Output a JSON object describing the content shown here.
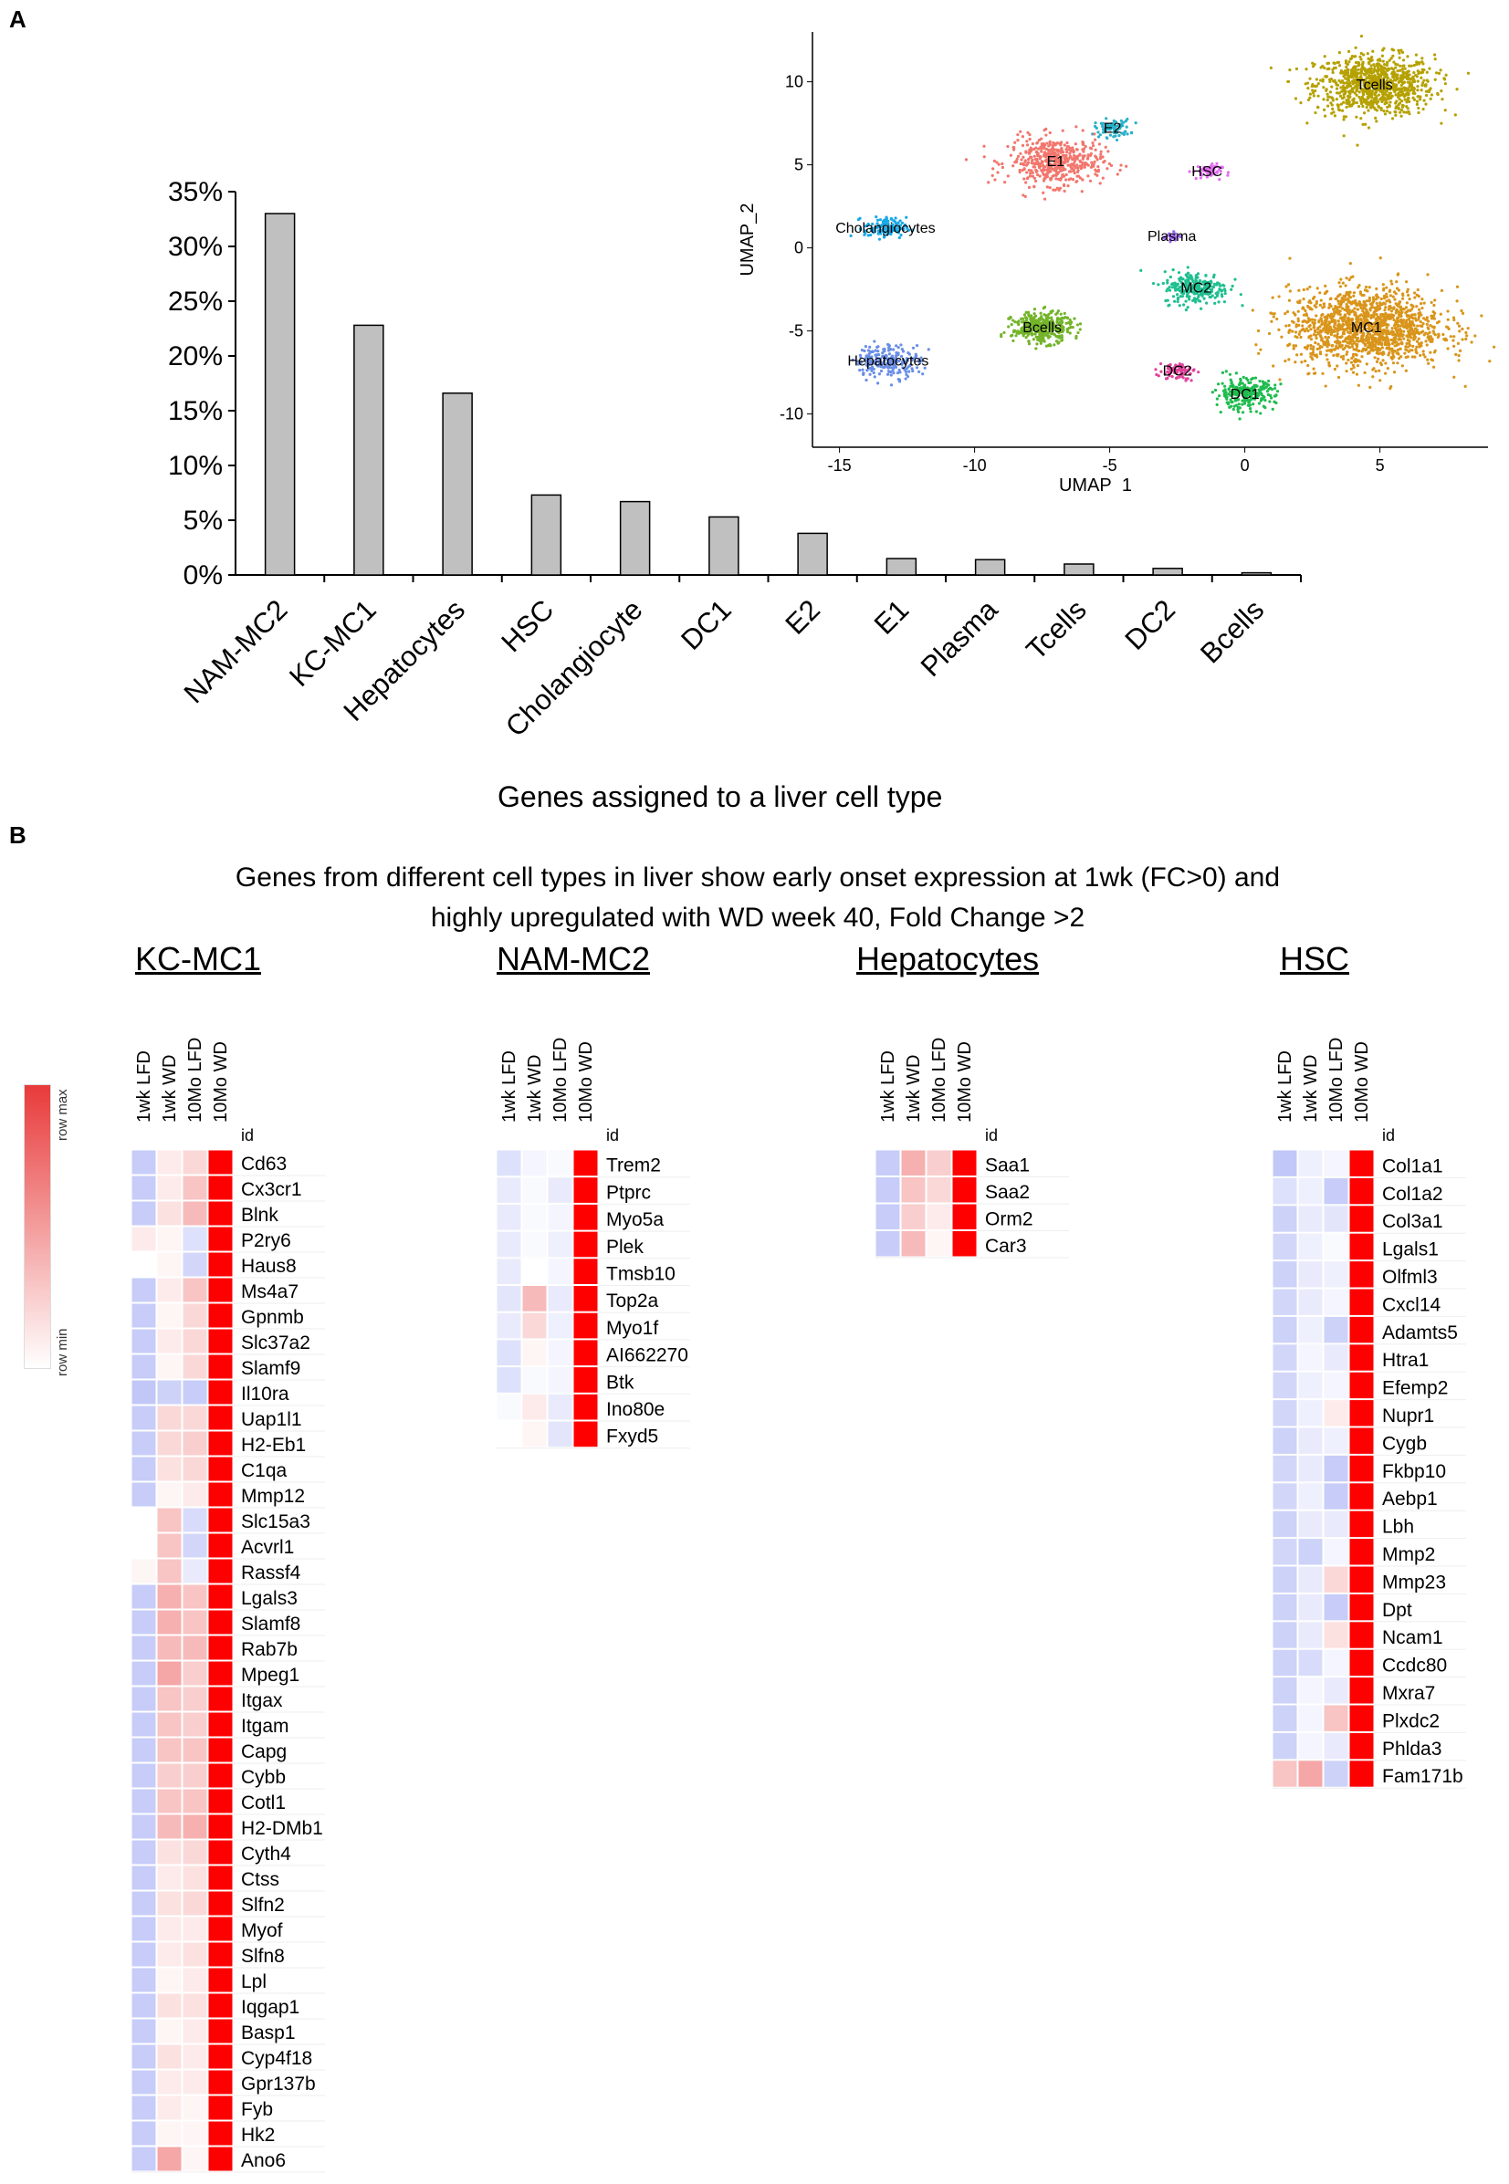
{
  "panel_labels": {
    "a": "A",
    "b": "B"
  },
  "chart_data": [
    {
      "type": "bar",
      "categories": [
        "NAM-MC2",
        "KC-MC1",
        "Hepatocytes",
        "HSC",
        "Cholangiocyte",
        "DC1",
        "E2",
        "E1",
        "Plasma",
        "Tcells",
        "DC2",
        "Bcells"
      ],
      "values": [
        33.0,
        22.8,
        16.6,
        7.3,
        6.7,
        5.3,
        3.8,
        1.5,
        1.4,
        1.0,
        0.6,
        0.2
      ],
      "ylim": [
        0,
        35
      ],
      "yticks": [
        "0%",
        "5%",
        "10%",
        "15%",
        "20%",
        "25%",
        "30%",
        "35%"
      ],
      "xlabel": "Genes assigned to a liver cell type",
      "ylabel": "",
      "bar_color": "#c0c0c0"
    },
    {
      "type": "scatter",
      "title": "UMAP inset",
      "xlabel": "UMAP_1",
      "ylabel": "UMAP_2",
      "xlim": [
        -16,
        9
      ],
      "ylim": [
        -12,
        13
      ],
      "xticks": [
        "-15",
        "-10",
        "-5",
        "0",
        "5"
      ],
      "xtick_values": [
        -15,
        -10,
        -5,
        0,
        5
      ],
      "yticks": [
        "10",
        "5",
        "0",
        "-5",
        "-10"
      ],
      "ytick_values": [
        10,
        5,
        0,
        -5,
        -10
      ],
      "clusters": [
        {
          "label": "Tcells",
          "cx": 4.8,
          "cy": 9.8,
          "spread": 2.0,
          "color": "#b5a100",
          "count": 900
        },
        {
          "label": "E2",
          "cx": -4.9,
          "cy": 7.2,
          "spread": 0.6,
          "color": "#27b1c9",
          "count": 80
        },
        {
          "label": "E1",
          "cx": -7.0,
          "cy": 5.2,
          "spread": 1.6,
          "color": "#f2766d",
          "count": 500
        },
        {
          "label": "HSC",
          "cx": -1.4,
          "cy": 4.6,
          "spread": 0.5,
          "color": "#e46cf0",
          "count": 50
        },
        {
          "label": "Cholangiocytes",
          "cx": -13.3,
          "cy": 1.2,
          "spread": 0.7,
          "color": "#18a9e6",
          "count": 120
        },
        {
          "label": "Plasma",
          "cx": -2.7,
          "cy": 0.7,
          "spread": 0.3,
          "color": "#9c67f2",
          "count": 25
        },
        {
          "label": "MC2",
          "cx": -1.8,
          "cy": -2.4,
          "spread": 1.1,
          "color": "#1fbf90",
          "count": 260
        },
        {
          "label": "MC1",
          "cx": 4.5,
          "cy": -4.8,
          "spread": 2.6,
          "color": "#d9951b",
          "count": 1400
        },
        {
          "label": "Bcells",
          "cx": -7.5,
          "cy": -4.8,
          "spread": 1.0,
          "color": "#74b42a",
          "count": 380
        },
        {
          "label": "Hepatocytes",
          "cx": -13.2,
          "cy": -6.8,
          "spread": 1.1,
          "color": "#6a8ee6",
          "count": 220
        },
        {
          "label": "DC2",
          "cx": -2.5,
          "cy": -7.4,
          "spread": 0.6,
          "color": "#e1429a",
          "count": 70
        },
        {
          "label": "DC1",
          "cx": 0.0,
          "cy": -8.8,
          "spread": 1.0,
          "color": "#1fbc4f",
          "count": 260
        }
      ]
    },
    {
      "type": "heatmap",
      "subtitle": "Genes from different cell types in liver show early onset expression at 1wk (FC>0) and highly upregulated with WD week 40, Fold Change >2",
      "columns": [
        "1wk LFD",
        "1wk WD",
        "10Mo LFD",
        "10Mo WD"
      ],
      "id_label": "id",
      "legend": {
        "max_label": "row max",
        "min_label": "row min",
        "max_color": "#e83a3a",
        "min_color": "#ffffff",
        "low_color": "#8f9bf0"
      },
      "groups": [
        {
          "title": "KC-MC1",
          "rows": [
            {
              "gene": "Cd63",
              "values": [
                -0.5,
                0.1,
                0.2,
                1.0
              ]
            },
            {
              "gene": "Cx3cr1",
              "values": [
                -0.5,
                0.1,
                0.3,
                1.0
              ]
            },
            {
              "gene": "Blnk",
              "values": [
                -0.5,
                0.15,
                0.35,
                1.0
              ]
            },
            {
              "gene": "P2ry6",
              "values": [
                0.1,
                0.05,
                -0.3,
                1.0
              ]
            },
            {
              "gene": "Haus8",
              "values": [
                0.0,
                0.05,
                -0.4,
                1.0
              ]
            },
            {
              "gene": "Ms4a7",
              "values": [
                -0.5,
                0.1,
                0.3,
                1.0
              ]
            },
            {
              "gene": "Gpnmb",
              "values": [
                -0.5,
                0.05,
                0.2,
                1.0
              ]
            },
            {
              "gene": "Slc37a2",
              "values": [
                -0.5,
                0.1,
                0.2,
                1.0
              ]
            },
            {
              "gene": "Slamf9",
              "values": [
                -0.5,
                0.05,
                0.2,
                1.0
              ]
            },
            {
              "gene": "Il10ra",
              "values": [
                -0.55,
                -0.45,
                -0.5,
                1.0
              ]
            },
            {
              "gene": "Uap1l1",
              "values": [
                -0.5,
                0.2,
                0.2,
                1.0
              ]
            },
            {
              "gene": "H2-Eb1",
              "values": [
                -0.5,
                0.2,
                0.25,
                1.0
              ]
            },
            {
              "gene": "C1qa",
              "values": [
                -0.5,
                0.15,
                0.2,
                1.0
              ]
            },
            {
              "gene": "Mmp12",
              "values": [
                -0.5,
                0.05,
                0.1,
                1.0
              ]
            },
            {
              "gene": "Slc15a3",
              "values": [
                0.0,
                0.3,
                -0.35,
                1.0
              ]
            },
            {
              "gene": "Acvrl1",
              "values": [
                0.0,
                0.3,
                -0.4,
                1.0
              ]
            },
            {
              "gene": "Rassf4",
              "values": [
                0.05,
                0.3,
                -0.2,
                1.0
              ]
            },
            {
              "gene": "Lgals3",
              "values": [
                -0.5,
                0.4,
                0.3,
                1.0
              ]
            },
            {
              "gene": "Slamf8",
              "values": [
                -0.5,
                0.4,
                0.3,
                1.0
              ]
            },
            {
              "gene": "Rab7b",
              "values": [
                -0.5,
                0.35,
                0.35,
                1.0
              ]
            },
            {
              "gene": "Mpeg1",
              "values": [
                -0.5,
                0.45,
                0.25,
                1.0
              ]
            },
            {
              "gene": "Itgax",
              "values": [
                -0.5,
                0.3,
                0.25,
                1.0
              ]
            },
            {
              "gene": "Itgam",
              "values": [
                -0.5,
                0.3,
                0.25,
                1.0
              ]
            },
            {
              "gene": "Capg",
              "values": [
                -0.5,
                0.3,
                0.3,
                1.0
              ]
            },
            {
              "gene": "Cybb",
              "values": [
                -0.5,
                0.25,
                0.25,
                1.0
              ]
            },
            {
              "gene": "Cotl1",
              "values": [
                -0.5,
                0.3,
                0.3,
                1.0
              ]
            },
            {
              "gene": "H2-DMb1",
              "values": [
                -0.5,
                0.35,
                0.4,
                1.0
              ]
            },
            {
              "gene": "Cyth4",
              "values": [
                -0.5,
                0.15,
                0.2,
                1.0
              ]
            },
            {
              "gene": "Ctss",
              "values": [
                -0.5,
                0.1,
                0.15,
                1.0
              ]
            },
            {
              "gene": "Slfn2",
              "values": [
                -0.5,
                0.15,
                0.2,
                1.0
              ]
            },
            {
              "gene": "Myof",
              "values": [
                -0.5,
                0.1,
                0.1,
                1.0
              ]
            },
            {
              "gene": "Slfn8",
              "values": [
                -0.5,
                0.1,
                0.15,
                1.0
              ]
            },
            {
              "gene": "Lpl",
              "values": [
                -0.5,
                0.05,
                0.1,
                1.0
              ]
            },
            {
              "gene": "Iqgap1",
              "values": [
                -0.5,
                0.15,
                0.15,
                1.0
              ]
            },
            {
              "gene": "Basp1",
              "values": [
                -0.5,
                0.05,
                0.1,
                1.0
              ]
            },
            {
              "gene": "Cyp4f18",
              "values": [
                -0.5,
                0.15,
                0.1,
                1.0
              ]
            },
            {
              "gene": "Gpr137b",
              "values": [
                -0.5,
                0.1,
                0.1,
                1.0
              ]
            },
            {
              "gene": "Fyb",
              "values": [
                -0.5,
                0.1,
                0.05,
                1.0
              ]
            },
            {
              "gene": "Hk2",
              "values": [
                -0.5,
                0.05,
                0.05,
                1.0
              ]
            },
            {
              "gene": "Ano6",
              "values": [
                -0.5,
                0.45,
                0.05,
                1.0
              ]
            }
          ]
        },
        {
          "title": "NAM-MC2",
          "rows": [
            {
              "gene": "Trem2",
              "values": [
                -0.3,
                -0.1,
                -0.05,
                1.0
              ]
            },
            {
              "gene": "Ptprc",
              "values": [
                -0.2,
                -0.05,
                -0.2,
                1.0
              ]
            },
            {
              "gene": "Myo5a",
              "values": [
                -0.2,
                -0.05,
                -0.1,
                1.0
              ]
            },
            {
              "gene": "Plek",
              "values": [
                -0.2,
                -0.05,
                -0.15,
                1.0
              ]
            },
            {
              "gene": "Tmsb10",
              "values": [
                -0.2,
                0.0,
                -0.1,
                1.0
              ]
            },
            {
              "gene": "Top2a",
              "values": [
                -0.25,
                0.35,
                -0.2,
                1.0
              ]
            },
            {
              "gene": "Myo1f",
              "values": [
                -0.2,
                0.2,
                -0.15,
                1.0
              ]
            },
            {
              "gene": "AI662270",
              "values": [
                -0.3,
                0.05,
                -0.1,
                1.0
              ]
            },
            {
              "gene": "Btk",
              "values": [
                -0.3,
                -0.05,
                -0.1,
                1.0
              ]
            },
            {
              "gene": "Ino80e",
              "values": [
                -0.05,
                0.1,
                -0.2,
                1.0
              ]
            },
            {
              "gene": "Fxyd5",
              "values": [
                0.0,
                0.05,
                -0.25,
                1.0
              ]
            }
          ]
        },
        {
          "title": "Hepatocytes",
          "rows": [
            {
              "gene": "Saa1",
              "values": [
                -0.5,
                0.4,
                0.25,
                1.0
              ]
            },
            {
              "gene": "Saa2",
              "values": [
                -0.5,
                0.3,
                0.2,
                1.0
              ]
            },
            {
              "gene": "Orm2",
              "values": [
                -0.5,
                0.25,
                0.1,
                1.0
              ]
            },
            {
              "gene": "Car3",
              "values": [
                -0.5,
                0.35,
                0.05,
                1.0
              ]
            }
          ]
        },
        {
          "title": "HSC",
          "rows": [
            {
              "gene": "Col1a1",
              "values": [
                -0.55,
                -0.15,
                -0.1,
                1.0
              ]
            },
            {
              "gene": "Col1a2",
              "values": [
                -0.3,
                -0.15,
                -0.5,
                1.0
              ]
            },
            {
              "gene": "Col3a1",
              "values": [
                -0.45,
                -0.2,
                -0.25,
                1.0
              ]
            },
            {
              "gene": "Lgals1",
              "values": [
                -0.4,
                -0.15,
                -0.05,
                1.0
              ]
            },
            {
              "gene": "Olfml3",
              "values": [
                -0.45,
                -0.2,
                -0.15,
                1.0
              ]
            },
            {
              "gene": "Cxcl14",
              "values": [
                -0.4,
                -0.2,
                -0.1,
                1.0
              ]
            },
            {
              "gene": "Adamts5",
              "values": [
                -0.45,
                -0.15,
                -0.45,
                1.0
              ]
            },
            {
              "gene": "Htra1",
              "values": [
                -0.4,
                -0.1,
                -0.2,
                1.0
              ]
            },
            {
              "gene": "Efemp2",
              "values": [
                -0.4,
                -0.15,
                -0.1,
                1.0
              ]
            },
            {
              "gene": "Nupr1",
              "values": [
                -0.4,
                -0.15,
                0.1,
                1.0
              ]
            },
            {
              "gene": "Cygb",
              "values": [
                -0.45,
                -0.2,
                -0.15,
                1.0
              ]
            },
            {
              "gene": "Fkbp10",
              "values": [
                -0.4,
                -0.2,
                -0.5,
                1.0
              ]
            },
            {
              "gene": "Aebp1",
              "values": [
                -0.4,
                -0.15,
                -0.5,
                1.0
              ]
            },
            {
              "gene": "Lbh",
              "values": [
                -0.45,
                -0.2,
                -0.2,
                1.0
              ]
            },
            {
              "gene": "Mmp2",
              "values": [
                -0.4,
                -0.45,
                -0.1,
                1.0
              ]
            },
            {
              "gene": "Mmp23",
              "values": [
                -0.45,
                -0.2,
                0.2,
                1.0
              ]
            },
            {
              "gene": "Dpt",
              "values": [
                -0.45,
                -0.2,
                -0.5,
                1.0
              ]
            },
            {
              "gene": "Ncam1",
              "values": [
                -0.45,
                -0.2,
                0.15,
                1.0
              ]
            },
            {
              "gene": "Ccdc80",
              "values": [
                -0.45,
                -0.35,
                -0.1,
                1.0
              ]
            },
            {
              "gene": "Mxra7",
              "values": [
                -0.45,
                -0.1,
                -0.2,
                1.0
              ]
            },
            {
              "gene": "Plxdc2",
              "values": [
                -0.45,
                -0.1,
                0.3,
                1.0
              ]
            },
            {
              "gene": "Phlda3",
              "values": [
                -0.45,
                -0.1,
                -0.2,
                1.0
              ]
            },
            {
              "gene": "Fam171b",
              "values": [
                0.3,
                0.45,
                -0.45,
                1.0
              ]
            }
          ]
        }
      ]
    }
  ]
}
